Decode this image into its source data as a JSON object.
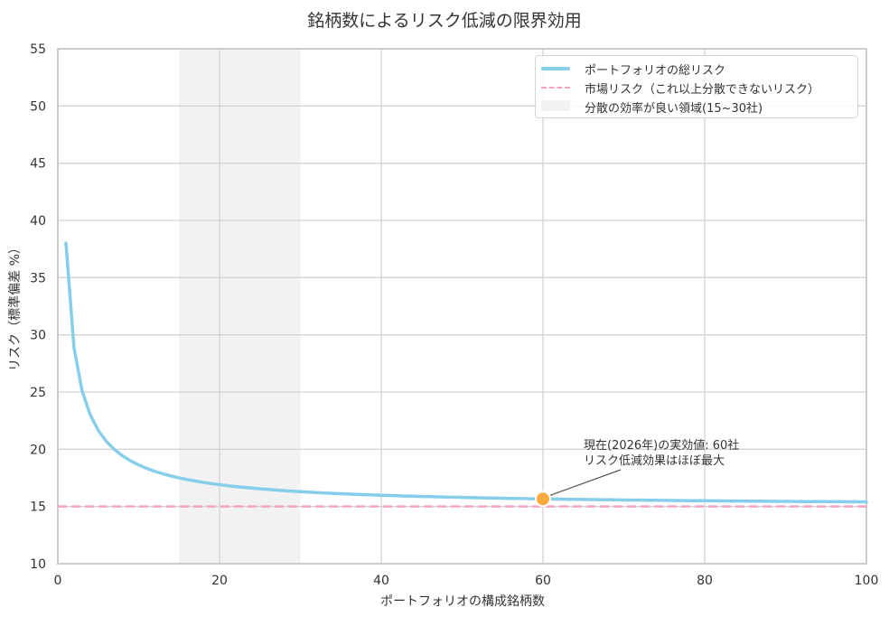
{
  "title": "銘柄数によるリスク低減の限界効用",
  "legend": {
    "items": [
      {
        "label": "ポートフォリオの総リスク",
        "kind": "line"
      },
      {
        "label": "市場リスク（これ以上分散できないリスク）",
        "kind": "dash"
      },
      {
        "label": "分散の効率が良い領域(15~30社)",
        "kind": "band"
      }
    ]
  },
  "annotation": {
    "line1": "現在(2026年)の実効値: 60社",
    "line2": "リスク低減効果はほぼ最大"
  },
  "colors": {
    "total_risk": "#87CEEB",
    "market_risk": "#F4A3C6",
    "band": "#F2F2F2",
    "marker": "#FBAA3E",
    "grid": "#D3D3D3",
    "spine": "#CCCCCC"
  },
  "chart_data": {
    "type": "line",
    "title": "銘柄数によるリスク低減の限界効用",
    "xlabel": "ポートフォリオの構成銘柄数",
    "ylabel": "リスク（標準偏差 %）",
    "xlim": [
      0,
      100
    ],
    "ylim": [
      10,
      55
    ],
    "xticks": [
      0,
      20,
      40,
      60,
      80,
      100
    ],
    "yticks": [
      10,
      15,
      20,
      25,
      30,
      35,
      40,
      45,
      50,
      55
    ],
    "grid": true,
    "legend_position": "upper right",
    "series": [
      {
        "name": "ポートフォリオの総リスク",
        "x": [
          1,
          2,
          3,
          4,
          5,
          6,
          7,
          8,
          9,
          10,
          12,
          15,
          20,
          25,
          30,
          40,
          50,
          60,
          70,
          80,
          90,
          100
        ],
        "y": [
          38.0,
          28.9,
          25.0,
          22.9,
          21.5,
          20.5,
          19.8,
          19.3,
          18.9,
          18.5,
          18.0,
          17.5,
          16.9,
          16.5,
          16.3,
          15.98,
          15.78,
          15.66,
          15.57,
          15.5,
          15.45,
          15.4
        ]
      },
      {
        "name": "市場リスク（これ以上分散できないリスク）",
        "x": [
          0,
          100
        ],
        "y": [
          15,
          15
        ],
        "style": "dashed"
      }
    ],
    "shaded_region": {
      "label": "分散の効率が良い領域(15~30社)",
      "x_start": 15,
      "x_end": 30
    },
    "highlight_point": {
      "x": 60,
      "y": 15.66,
      "label": "現在(2026年)の実効値: 60社\nリスク低減効果はほぼ最大",
      "text_x": 65,
      "text_y": 19.5
    }
  }
}
